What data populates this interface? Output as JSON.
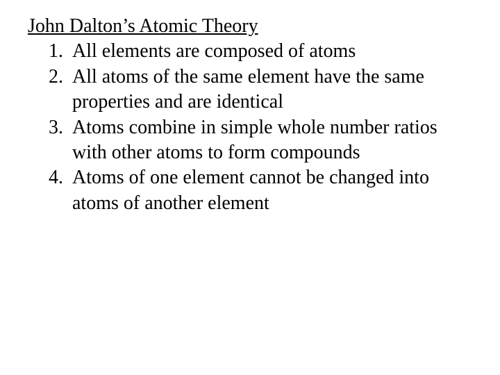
{
  "slide": {
    "title": "John Dalton’s Atomic Theory",
    "items": [
      "All elements are composed of atoms",
      "All atoms of the same element have the same properties and are identical",
      "Atoms combine in simple whole number ratios with other atoms to form compounds",
      "Atoms of one element cannot be changed into atoms of another element"
    ],
    "font_family": "Times New Roman",
    "title_fontsize": 28,
    "body_fontsize": 28,
    "text_color": "#000000",
    "background_color": "#ffffff"
  }
}
